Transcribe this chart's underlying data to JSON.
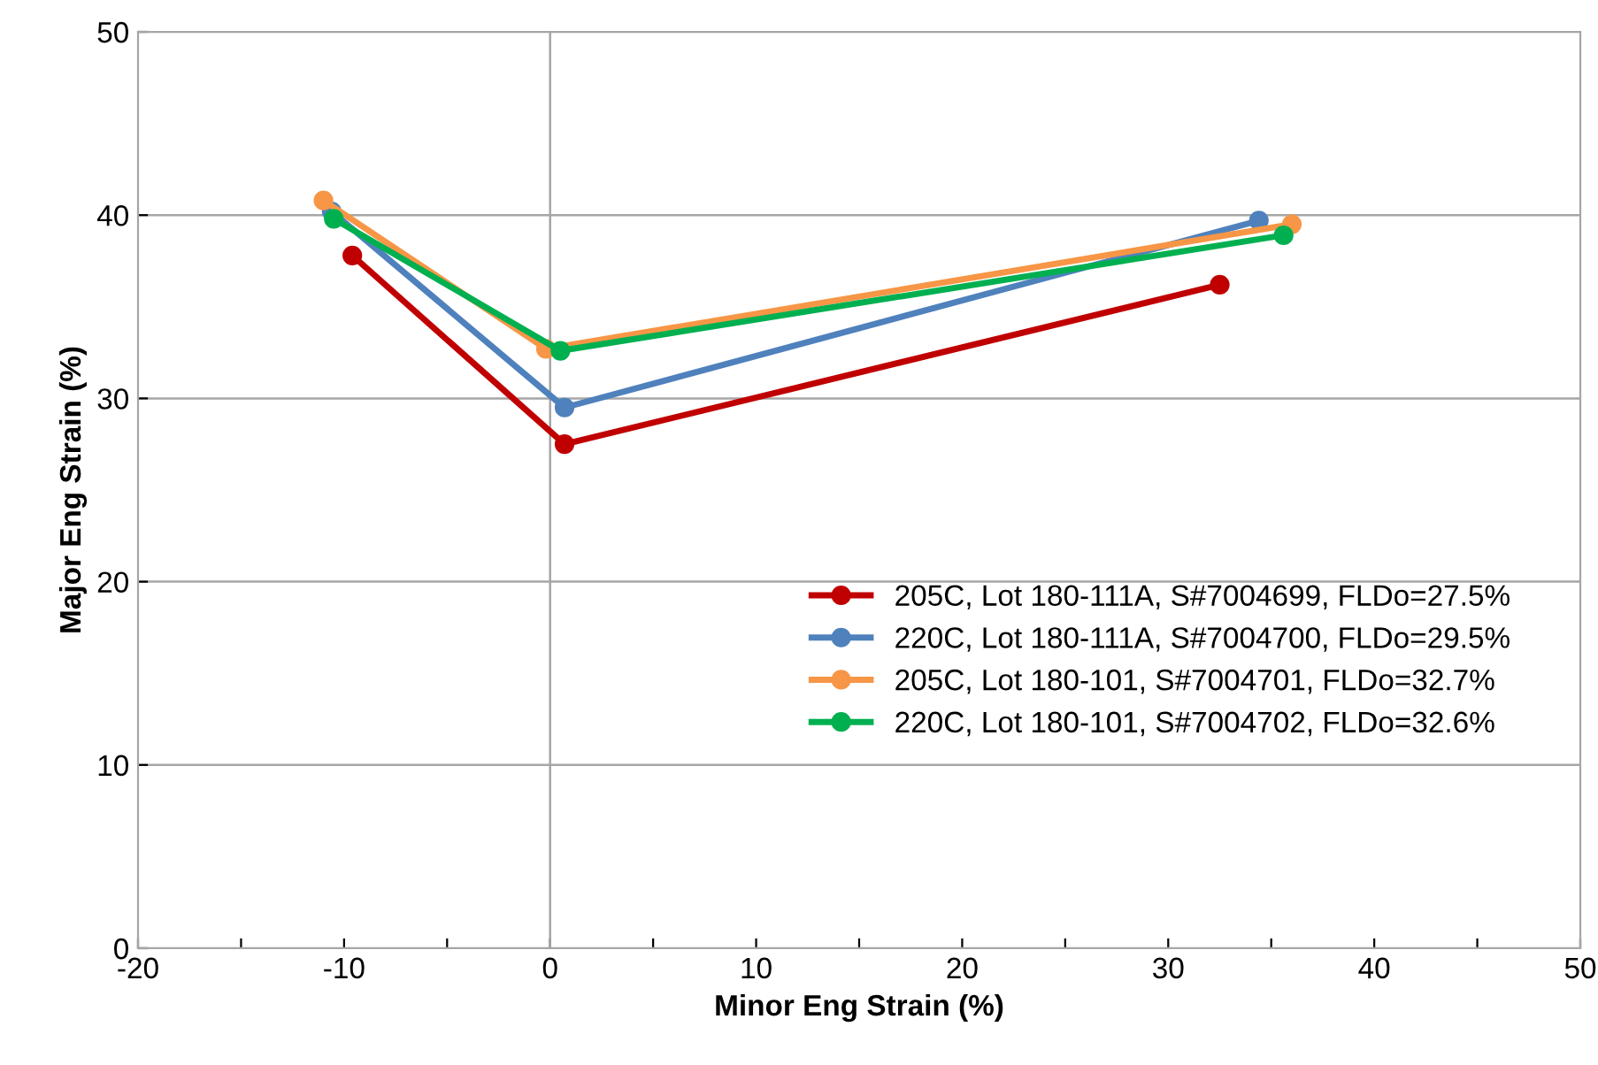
{
  "chart_data": {
    "type": "line",
    "xlabel": "Minor Eng Strain (%)",
    "ylabel": "Major Eng Strain (%)",
    "xlim": [
      -20,
      50
    ],
    "ylim": [
      0,
      50
    ],
    "xticks": [
      -20,
      {
        "value": -15,
        "label": null
      },
      -10,
      {
        "value": -5,
        "label": null
      },
      0,
      {
        "value": 5,
        "label": null
      },
      10,
      {
        "value": 15,
        "label": null
      },
      20,
      {
        "value": 25,
        "label": null
      },
      30,
      {
        "value": 35,
        "label": null
      },
      40,
      {
        "value": 45,
        "label": null
      },
      50
    ],
    "yticks": [
      0,
      10,
      20,
      30,
      40,
      50
    ],
    "grid": "y",
    "legend": "bottom right",
    "marker": "circle",
    "line_style": "solid",
    "ref_lines": [
      {
        "axis": "x",
        "value": 0,
        "color": "#a6a6a6"
      }
    ],
    "series": [
      {
        "name": "205C, Lot 180-111A, S#7004699, FLDo=27.5%",
        "color": "#c00000",
        "x": [
          -9.6,
          0.7,
          32.5
        ],
        "values": [
          37.8,
          27.5,
          36.2
        ]
      },
      {
        "name": "220C, Lot 180-111A, S#7004700, FLDo=29.5%",
        "color": "#4f81bd",
        "x": [
          -10.6,
          0.7,
          34.4
        ],
        "values": [
          40.2,
          29.5,
          39.7
        ]
      },
      {
        "name": "205C, Lot 180-101, S#7004701, FLDo=32.7%",
        "color": "#f79646",
        "x": [
          -11.0,
          -0.2,
          36.0
        ],
        "values": [
          40.8,
          32.7,
          39.5
        ]
      },
      {
        "name": "220C, Lot 180-101, S#7004702, FLDo=32.6%",
        "color": "#00b050",
        "x": [
          -10.5,
          0.5,
          35.6
        ],
        "values": [
          39.8,
          32.6,
          38.9
        ]
      }
    ]
  }
}
